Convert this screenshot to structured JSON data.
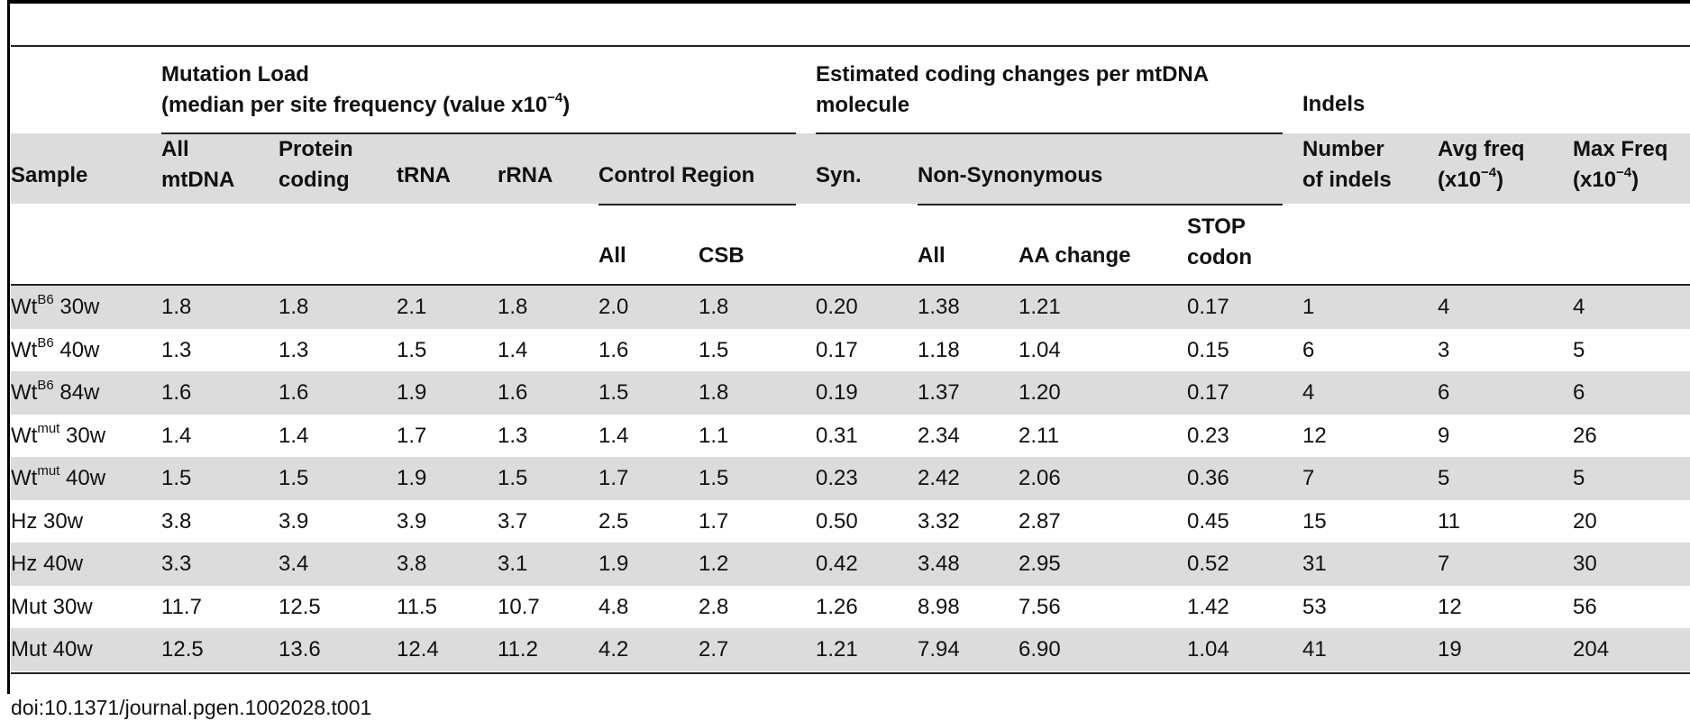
{
  "header": {
    "mutation_load_line1": "Mutation Load",
    "mutation_load_line2": "(median per site frequency (value x10",
    "mutation_load_exp": "−4",
    "mutation_load_close": ")",
    "coding_changes_line1": "Estimated coding changes per mtDNA",
    "coding_changes_line2": "molecule",
    "indels": "Indels",
    "sample": "Sample",
    "all_mtdna_1": "All",
    "all_mtdna_2": "mtDNA",
    "protein_coding_1": "Protein",
    "protein_coding_2": "coding",
    "trna": "tRNA",
    "rrna": "rRNA",
    "control_region": "Control Region",
    "syn": "Syn.",
    "non_synonymous": "Non-Synonymous",
    "number_of_indels_1": "Number",
    "number_of_indels_2": "of indels",
    "avg_freq_1": "Avg freq",
    "avg_freq_2": "(x10",
    "avg_freq_exp": "−4",
    "avg_freq_close": ")",
    "max_freq_1": "Max Freq",
    "max_freq_2": "(x10",
    "max_freq_exp": "−4",
    "max_freq_close": ")",
    "cr_all": "All",
    "cr_csb": "CSB",
    "ns_all": "All",
    "ns_aa_change": "AA change",
    "ns_stop_1": "STOP",
    "ns_stop_2": "codon"
  },
  "rows": [
    {
      "base": "Wt",
      "sup": "B6",
      "age": " 30w",
      "v": [
        "1.8",
        "1.8",
        "2.1",
        "1.8",
        "2.0",
        "1.8",
        "0.20",
        "1.38",
        "1.21",
        "0.17",
        "1",
        "4",
        "4"
      ]
    },
    {
      "base": "Wt",
      "sup": "B6",
      "age": " 40w",
      "v": [
        "1.3",
        "1.3",
        "1.5",
        "1.4",
        "1.6",
        "1.5",
        "0.17",
        "1.18",
        "1.04",
        "0.15",
        "6",
        "3",
        "5"
      ]
    },
    {
      "base": "Wt",
      "sup": "B6",
      "age": " 84w",
      "v": [
        "1.6",
        "1.6",
        "1.9",
        "1.6",
        "1.5",
        "1.8",
        "0.19",
        "1.37",
        "1.20",
        "0.17",
        "4",
        "6",
        "6"
      ]
    },
    {
      "base": "Wt",
      "sup": "mut",
      "age": " 30w",
      "v": [
        "1.4",
        "1.4",
        "1.7",
        "1.3",
        "1.4",
        "1.1",
        "0.31",
        "2.34",
        "2.11",
        "0.23",
        "12",
        "9",
        "26"
      ]
    },
    {
      "base": "Wt",
      "sup": "mut",
      "age": " 40w",
      "v": [
        "1.5",
        "1.5",
        "1.9",
        "1.5",
        "1.7",
        "1.5",
        "0.23",
        "2.42",
        "2.06",
        "0.36",
        "7",
        "5",
        "5"
      ]
    },
    {
      "base": "Hz 30w",
      "sup": "",
      "age": "",
      "v": [
        "3.8",
        "3.9",
        "3.9",
        "3.7",
        "2.5",
        "1.7",
        "0.50",
        "3.32",
        "2.87",
        "0.45",
        "15",
        "11",
        "20"
      ]
    },
    {
      "base": "Hz 40w",
      "sup": "",
      "age": "",
      "v": [
        "3.3",
        "3.4",
        "3.8",
        "3.1",
        "1.9",
        "1.2",
        "0.42",
        "3.48",
        "2.95",
        "0.52",
        "31",
        "7",
        "30"
      ]
    },
    {
      "base": "Mut 30w",
      "sup": "",
      "age": "",
      "v": [
        "11.7",
        "12.5",
        "11.5",
        "10.7",
        "4.8",
        "2.8",
        "1.26",
        "8.98",
        "7.56",
        "1.42",
        "53",
        "12",
        "56"
      ]
    },
    {
      "base": "Mut 40w",
      "sup": "",
      "age": "",
      "v": [
        "12.5",
        "13.6",
        "12.4",
        "11.2",
        "4.2",
        "2.7",
        "1.21",
        "7.94",
        "6.90",
        "1.04",
        "41",
        "19",
        "204"
      ]
    }
  ],
  "footer": "doi:10.1371/journal.pgen.1002028.t001"
}
